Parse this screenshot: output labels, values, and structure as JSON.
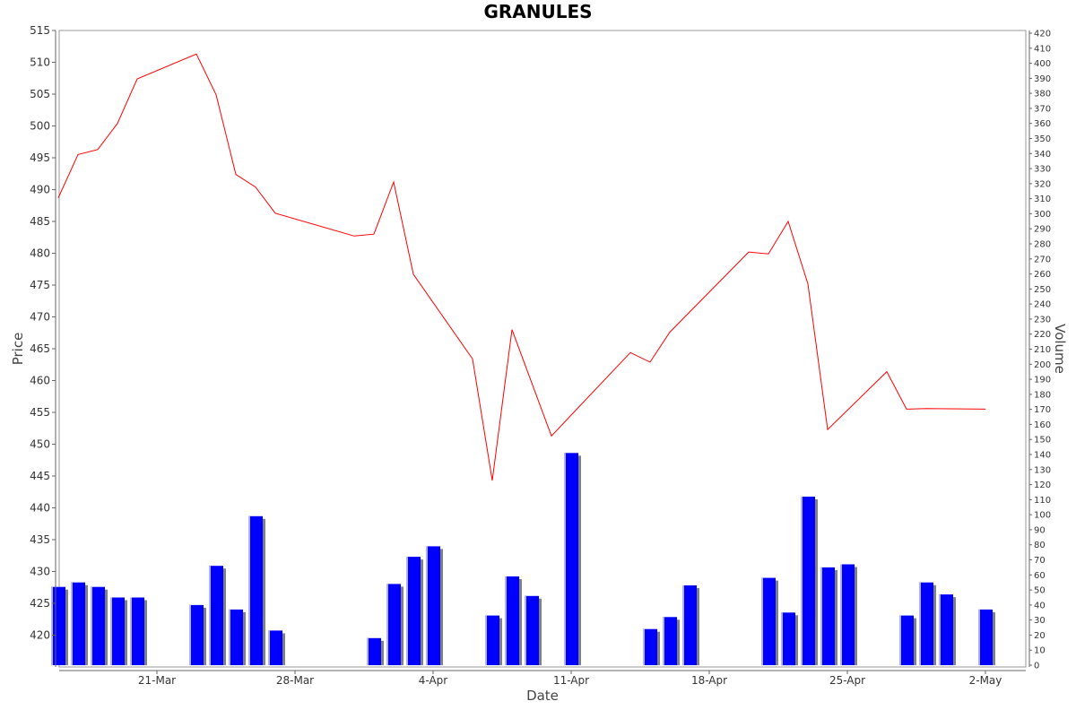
{
  "chart_data": {
    "type": "line",
    "title": "GRANULES",
    "xlabel": "Date",
    "ylabel": "Price",
    "y2label": "Volume",
    "ylim": [
      415,
      515
    ],
    "y2lim": [
      0,
      420
    ],
    "yticks": [
      420,
      425,
      430,
      435,
      440,
      445,
      450,
      455,
      460,
      465,
      470,
      475,
      480,
      485,
      490,
      495,
      500,
      505,
      510,
      515
    ],
    "y2ticks": [
      0,
      10,
      20,
      30,
      40,
      50,
      60,
      70,
      80,
      90,
      100,
      110,
      120,
      130,
      140,
      150,
      160,
      170,
      180,
      190,
      200,
      210,
      220,
      230,
      240,
      250,
      260,
      270,
      280,
      290,
      300,
      310,
      320,
      330,
      340,
      350,
      360,
      370,
      380,
      390,
      400,
      410,
      420
    ],
    "xlim": [
      "2022-03-15",
      "2022-05-04"
    ],
    "xticks": [
      {
        "date": "2022-03-21",
        "label": "21-Mar"
      },
      {
        "date": "2022-03-28",
        "label": "28-Mar"
      },
      {
        "date": "2022-04-04",
        "label": "4-Apr"
      },
      {
        "date": "2022-04-11",
        "label": "11-Apr"
      },
      {
        "date": "2022-04-18",
        "label": "18-Apr"
      },
      {
        "date": "2022-04-25",
        "label": "25-Apr"
      },
      {
        "date": "2022-05-02",
        "label": "2-May"
      }
    ],
    "grid": false,
    "x": [
      "2022-03-16",
      "2022-03-17",
      "2022-03-18",
      "2022-03-19",
      "2022-03-20",
      "2022-03-23",
      "2022-03-24",
      "2022-03-25",
      "2022-03-26",
      "2022-03-27",
      "2022-03-31",
      "2022-04-01",
      "2022-04-02",
      "2022-04-03",
      "2022-04-06",
      "2022-04-07",
      "2022-04-08",
      "2022-04-10",
      "2022-04-14",
      "2022-04-15",
      "2022-04-16",
      "2022-04-20",
      "2022-04-21",
      "2022-04-22",
      "2022-04-23",
      "2022-04-24",
      "2022-04-27",
      "2022-04-28",
      "2022-04-29",
      "2022-05-02"
    ],
    "series": [
      {
        "type": "line",
        "axis": "price",
        "color": "#ff0000",
        "values": [
          488.7,
          495.5,
          496.3,
          500.4,
          507.4,
          511.3,
          504.9,
          492.4,
          490.4,
          486.3,
          482.7,
          483.0,
          491.2,
          476.7,
          463.4,
          444.3,
          468.0,
          451.3,
          464.4,
          462.9,
          467.6,
          480.2,
          479.9,
          485.0,
          475.2,
          452.3,
          461.4,
          455.5,
          455.6,
          455.5
        ]
      },
      {
        "type": "bar",
        "axis": "volume",
        "color": "#0000ff",
        "shadow_color": "#808080",
        "x": [
          "2022-03-16",
          "2022-03-17",
          "2022-03-18",
          "2022-03-19",
          "2022-03-20",
          "2022-03-23",
          "2022-03-24",
          "2022-03-25",
          "2022-03-26",
          "2022-03-27",
          "2022-04-01",
          "2022-04-02",
          "2022-04-03",
          "2022-04-04",
          "2022-04-07",
          "2022-04-08",
          "2022-04-09",
          "2022-04-11",
          "2022-04-15",
          "2022-04-16",
          "2022-04-17",
          "2022-04-21",
          "2022-04-22",
          "2022-04-23",
          "2022-04-24",
          "2022-04-25",
          "2022-04-28",
          "2022-04-29",
          "2022-04-30",
          "2022-05-02"
        ],
        "values": [
          52,
          55,
          52,
          45,
          45,
          40,
          66,
          37,
          99,
          23,
          18,
          54,
          72,
          79,
          33,
          59,
          46,
          141,
          24,
          32,
          53,
          58,
          35,
          112,
          65,
          67,
          33,
          55,
          47,
          37
        ]
      }
    ]
  }
}
